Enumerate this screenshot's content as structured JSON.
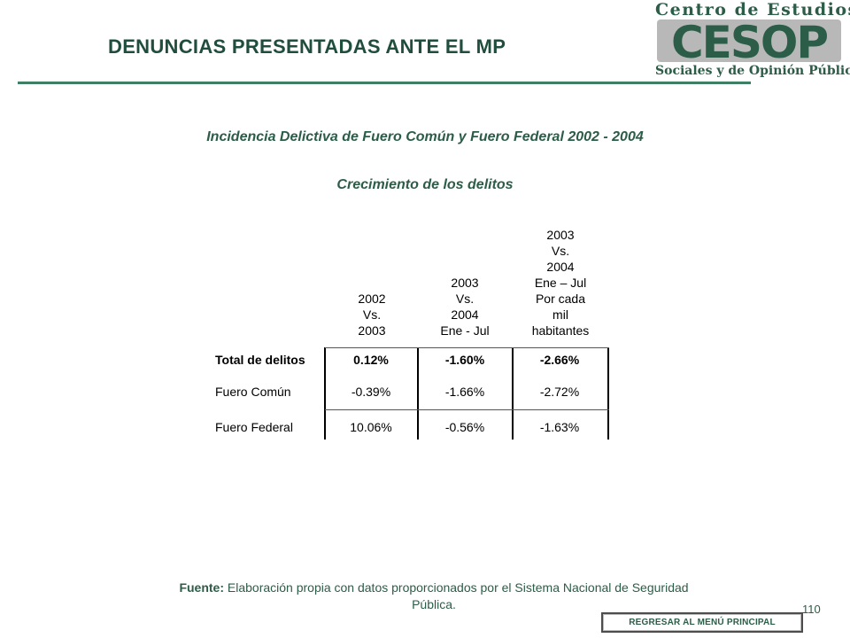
{
  "header": {
    "title": "DENUNCIAS PRESENTADAS ANTE EL MP",
    "logo": {
      "top_text": "Centro de Estudios",
      "mark_text": "CESOP",
      "bottom_text": "Sociales y de Opinión Pública"
    }
  },
  "subtitle": "Incidencia Delictiva de Fuero Común y Fuero Federal 2002 - 2004",
  "section_title": "Crecimiento de los delitos",
  "table": {
    "columns": [
      {
        "lines": [
          "2002",
          "Vs.",
          "2003"
        ]
      },
      {
        "lines": [
          "2003",
          "Vs.",
          "2004",
          "Ene - Jul"
        ]
      },
      {
        "lines": [
          "2003",
          "Vs.",
          "2004",
          "Ene – Jul",
          "Por cada",
          "mil",
          "habitantes"
        ]
      }
    ],
    "rows": [
      {
        "label": "Total de delitos",
        "values": [
          "0.12%",
          "-1.60%",
          "-2.66%"
        ]
      },
      {
        "label": "Fuero Común",
        "values": [
          "-0.39%",
          "-1.66%",
          "-2.72%"
        ]
      },
      {
        "label": "Fuero Federal",
        "values": [
          "10.06%",
          "-0.56%",
          "-1.63%"
        ]
      }
    ]
  },
  "footnote": {
    "label": "Fuente:",
    "text": "Elaboración propia con datos proporcionados por el Sistema Nacional de Seguridad Pública."
  },
  "page_number": "110",
  "nav_button": "REGRESAR AL MENÚ PRINCIPAL",
  "colors": {
    "accent_green": "#2c5d48",
    "logo_gray": "#b8b8b8"
  }
}
